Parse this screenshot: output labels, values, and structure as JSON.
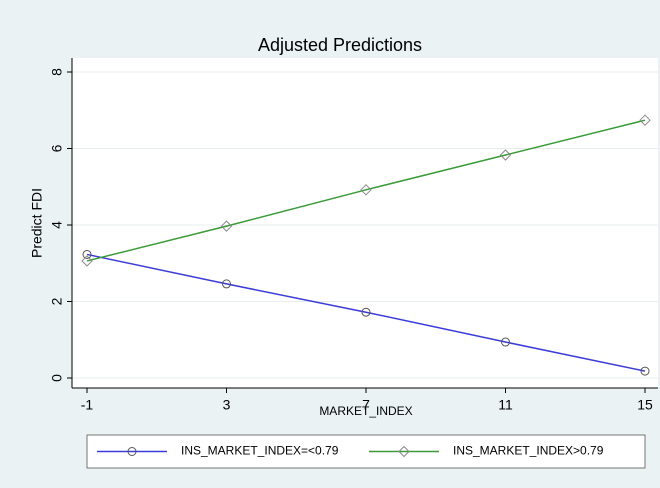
{
  "chart_data": {
    "type": "line",
    "title": "Adjusted Predictions",
    "x_label": "MARKET_INDEX",
    "y_label": "Predict FDI",
    "x": [
      -1,
      3,
      7,
      11,
      15
    ],
    "series": [
      {
        "name": "INS_MARKET_INDEX=<0.79",
        "color": "#3b3bd9",
        "marker": "circle",
        "values": [
          3.23,
          2.46,
          1.72,
          0.94,
          0.18
        ]
      },
      {
        "name": "INS_MARKET_INDEX>0.79",
        "color": "#3a9a3a",
        "marker": "diamond",
        "values": [
          3.06,
          3.97,
          4.92,
          5.83,
          6.74
        ]
      }
    ],
    "xlim": [
      -1,
      15
    ],
    "xticks": [
      -1,
      3,
      7,
      11,
      15
    ],
    "ylim": [
      0,
      8
    ],
    "yticks": [
      0,
      2,
      4,
      6,
      8
    ],
    "grid": true,
    "legend": "bottom"
  }
}
